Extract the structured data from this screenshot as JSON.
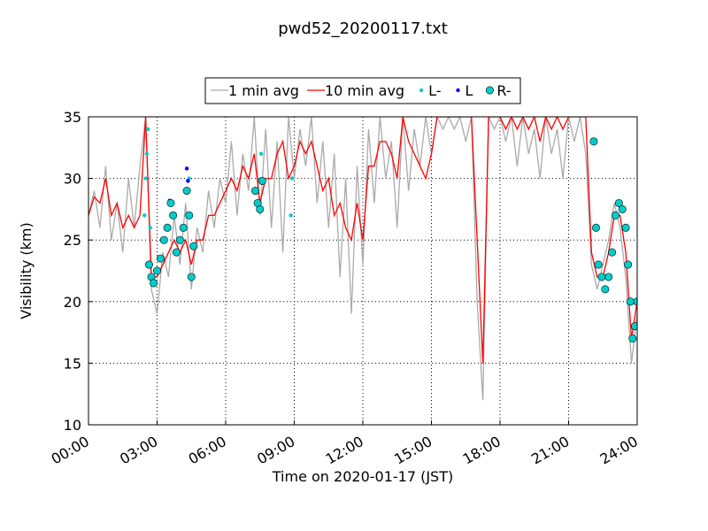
{
  "chart_data": {
    "type": "line",
    "title": "pwd52_20200117.txt",
    "xlabel": "Time on 2020-01-17 (JST)",
    "ylabel": "Visibility (km)",
    "xlim": [
      0,
      24
    ],
    "ylim": [
      10,
      35
    ],
    "xticks": [
      {
        "value": 0,
        "label": "00:00"
      },
      {
        "value": 3,
        "label": "03:00"
      },
      {
        "value": 6,
        "label": "06:00"
      },
      {
        "value": 9,
        "label": "09:00"
      },
      {
        "value": 12,
        "label": "12:00"
      },
      {
        "value": 15,
        "label": "15:00"
      },
      {
        "value": 18,
        "label": "18:00"
      },
      {
        "value": 21,
        "label": "21:00"
      },
      {
        "value": 24,
        "label": "24:00"
      }
    ],
    "yticks": [
      10,
      15,
      20,
      25,
      30,
      35
    ],
    "grid": true,
    "legend": "top",
    "x": [
      0,
      0.25,
      0.5,
      0.75,
      1,
      1.25,
      1.5,
      1.75,
      2,
      2.25,
      2.5,
      2.75,
      3,
      3.25,
      3.5,
      3.75,
      4,
      4.25,
      4.5,
      4.75,
      5,
      5.25,
      5.5,
      5.75,
      6,
      6.25,
      6.5,
      6.75,
      7,
      7.25,
      7.5,
      7.75,
      8,
      8.25,
      8.5,
      8.75,
      9,
      9.25,
      9.5,
      9.75,
      10,
      10.25,
      10.5,
      10.75,
      11,
      11.25,
      11.5,
      11.75,
      12,
      12.25,
      12.5,
      12.75,
      13,
      13.25,
      13.5,
      13.75,
      14,
      14.25,
      14.5,
      14.75,
      15,
      15.25,
      15.5,
      15.75,
      16,
      16.25,
      16.5,
      16.75,
      17,
      17.25,
      17.5,
      17.75,
      18,
      18.25,
      18.5,
      18.75,
      19,
      19.25,
      19.5,
      19.75,
      20,
      20.25,
      20.5,
      20.75,
      21,
      21.25,
      21.5,
      21.75,
      22,
      22.25,
      22.5,
      22.75,
      23,
      23.25,
      23.5,
      23.75,
      24
    ],
    "series": [
      {
        "name": "1 min avg",
        "kind": "line",
        "color": "#aaaaaa",
        "values": [
          27,
          29,
          26,
          31,
          25,
          28,
          24,
          30,
          26,
          31,
          35,
          21,
          19,
          24,
          22,
          27,
          23,
          28,
          21,
          26,
          24,
          29,
          26,
          30,
          28,
          33,
          27,
          32,
          29,
          35,
          27,
          34,
          26,
          33,
          24,
          35,
          30,
          34,
          31,
          35,
          28,
          33,
          26,
          32,
          22,
          30,
          19,
          31,
          23,
          34,
          28,
          35,
          30,
          33,
          26,
          35,
          29,
          34,
          31,
          35,
          32,
          35,
          34,
          35,
          34,
          35,
          33,
          35,
          20,
          12,
          35,
          34,
          35,
          33,
          35,
          31,
          35,
          32,
          34,
          30,
          35,
          32,
          34,
          30,
          35,
          33,
          35,
          32,
          23,
          21,
          23,
          25,
          28,
          26,
          22,
          15,
          19
        ]
      },
      {
        "name": "10 min avg",
        "kind": "line",
        "color": "#ff0000",
        "values": [
          27,
          28.5,
          28,
          30,
          27,
          28,
          26,
          27,
          26,
          27,
          35,
          22,
          22,
          23,
          24,
          25,
          24,
          25,
          23,
          25,
          25,
          27,
          27,
          28,
          29,
          30,
          29,
          31,
          30,
          32,
          28,
          30,
          30,
          32,
          33,
          30,
          31,
          33,
          32,
          33,
          31,
          29,
          30,
          27,
          28,
          26,
          25,
          28,
          25,
          31,
          31,
          33,
          33,
          32,
          30,
          35,
          33,
          32,
          31,
          30,
          32,
          35,
          35,
          35,
          35,
          35,
          35,
          35,
          25,
          15,
          35,
          35,
          35,
          34,
          35,
          34,
          35,
          34,
          35,
          33,
          35,
          34,
          35,
          34,
          35,
          35,
          35,
          35,
          24,
          22,
          22,
          24,
          27,
          27,
          24,
          17,
          20
        ]
      },
      {
        "name": "L-",
        "kind": "scatter",
        "color": "#00cccc",
        "x": [
          2.45,
          2.5,
          2.55,
          2.6,
          2.7,
          3.6,
          4.4,
          7.55,
          8.85,
          8.9
        ],
        "values": [
          27,
          30,
          32,
          34,
          26,
          28,
          30,
          32,
          27,
          30
        ]
      },
      {
        "name": "L",
        "kind": "scatter",
        "color": "#0000ff",
        "x": [
          3.55,
          4.3,
          4.35
        ],
        "values": [
          28.2,
          30.8,
          29.8
        ]
      },
      {
        "name": "R-",
        "kind": "scatter-large",
        "color": "#00cccc",
        "x": [
          2.65,
          2.75,
          2.85,
          3.0,
          3.15,
          3.3,
          3.45,
          3.6,
          3.7,
          3.85,
          4.0,
          4.15,
          4.3,
          4.4,
          4.5,
          4.6,
          7.3,
          7.4,
          7.5,
          7.6,
          22.1,
          22.2,
          22.3,
          22.45,
          22.6,
          22.75,
          22.9,
          23.05,
          23.2,
          23.35,
          23.5,
          23.6,
          23.7,
          23.8,
          23.9,
          24.0
        ],
        "values": [
          23,
          22,
          21.5,
          22.5,
          23.5,
          25,
          26,
          28,
          27,
          24,
          25,
          26,
          29,
          27,
          22,
          24.5,
          29,
          28,
          27.5,
          29.8,
          33,
          26,
          23,
          22,
          21,
          22,
          24,
          27,
          28,
          27.5,
          26,
          23,
          20,
          17,
          18,
          20
        ]
      }
    ]
  }
}
